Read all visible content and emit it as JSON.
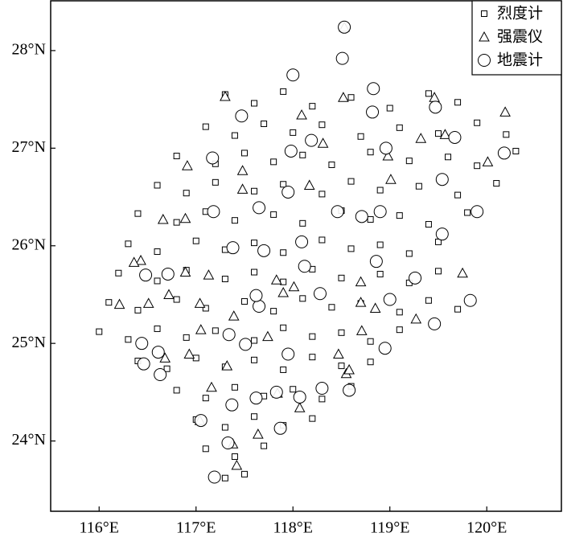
{
  "chart_data": {
    "type": "scatter",
    "xlim": [
      115.5,
      120.77
    ],
    "ylim": [
      23.28,
      28.51
    ],
    "xticks": [
      {
        "value": 116,
        "label": "116°E"
      },
      {
        "value": 117,
        "label": "117°E"
      },
      {
        "value": 118,
        "label": "118°E"
      },
      {
        "value": 119,
        "label": "119°E"
      },
      {
        "value": 120,
        "label": "120°E"
      }
    ],
    "yticks": [
      {
        "value": 24,
        "label": "24°N"
      },
      {
        "value": 25,
        "label": "25°N"
      },
      {
        "value": 26,
        "label": "26°N"
      },
      {
        "value": 27,
        "label": "27°N"
      },
      {
        "value": 28,
        "label": "28°N"
      }
    ],
    "legend": "upper right",
    "series": [
      {
        "name": "烈度计",
        "marker": "square",
        "color": "#000000",
        "x": [
          117.3,
          117.6,
          117.9,
          118.2,
          118.6,
          119.0,
          119.4,
          119.7,
          117.1,
          117.4,
          117.7,
          118.0,
          118.3,
          118.7,
          119.1,
          119.5,
          119.9,
          120.2,
          116.8,
          117.2,
          117.5,
          117.8,
          118.1,
          118.4,
          118.8,
          119.2,
          119.6,
          119.9,
          120.3,
          116.6,
          116.9,
          117.2,
          117.6,
          117.9,
          118.3,
          118.6,
          118.9,
          119.3,
          119.7,
          120.1,
          116.4,
          116.8,
          117.1,
          117.4,
          117.8,
          118.1,
          118.5,
          118.8,
          119.1,
          119.4,
          119.8,
          116.3,
          116.6,
          117.0,
          117.3,
          117.6,
          117.9,
          118.3,
          118.6,
          118.9,
          119.2,
          119.5,
          116.2,
          116.6,
          116.9,
          117.3,
          117.6,
          117.9,
          118.2,
          118.5,
          118.9,
          119.2,
          119.5,
          116.1,
          116.4,
          116.8,
          117.1,
          117.5,
          117.8,
          118.1,
          118.4,
          118.7,
          119.1,
          119.4,
          119.7,
          116.0,
          116.3,
          116.6,
          116.9,
          117.2,
          117.6,
          117.9,
          118.2,
          118.5,
          118.8,
          119.1,
          116.4,
          116.7,
          117.0,
          117.3,
          117.6,
          117.9,
          118.2,
          118.5,
          118.8,
          116.8,
          117.1,
          117.4,
          117.7,
          118.0,
          118.3,
          118.6,
          117.0,
          117.3,
          117.6,
          117.9,
          118.2,
          117.1,
          117.4,
          117.7,
          117.3,
          117.5
        ],
        "y": [
          27.55,
          27.46,
          27.58,
          27.43,
          27.52,
          27.41,
          27.56,
          27.47,
          27.22,
          27.13,
          27.25,
          27.16,
          27.24,
          27.12,
          27.21,
          27.15,
          27.26,
          27.14,
          26.92,
          26.84,
          26.95,
          26.86,
          26.93,
          26.83,
          26.96,
          26.87,
          26.91,
          26.82,
          26.97,
          26.62,
          26.54,
          26.65,
          26.56,
          26.63,
          26.53,
          26.66,
          26.57,
          26.61,
          26.52,
          26.64,
          26.33,
          26.24,
          26.35,
          26.26,
          26.32,
          26.23,
          26.36,
          26.27,
          26.31,
          26.22,
          26.34,
          26.02,
          25.94,
          26.05,
          25.96,
          26.03,
          25.93,
          26.06,
          25.97,
          26.01,
          25.92,
          26.04,
          25.72,
          25.64,
          25.75,
          25.66,
          25.73,
          25.63,
          25.76,
          25.67,
          25.71,
          25.62,
          25.74,
          25.42,
          25.34,
          25.45,
          25.36,
          25.43,
          25.33,
          25.46,
          25.37,
          25.41,
          25.32,
          25.44,
          25.35,
          25.12,
          25.04,
          25.15,
          25.06,
          25.13,
          25.03,
          25.16,
          25.07,
          25.11,
          25.02,
          25.14,
          24.82,
          24.74,
          24.85,
          24.76,
          24.83,
          24.73,
          24.86,
          24.77,
          24.81,
          24.52,
          24.44,
          24.55,
          24.46,
          24.53,
          24.43,
          24.56,
          24.22,
          24.14,
          24.25,
          24.16,
          24.23,
          23.92,
          23.84,
          23.95,
          23.62,
          23.66
        ]
      },
      {
        "name": "强震仪",
        "marker": "triangle",
        "color": "#000000",
        "x": [
          118.53,
          117.3,
          118.52,
          119.46,
          118.09,
          120.19,
          116.91,
          117.48,
          117.48,
          118.17,
          118.98,
          119.01,
          118.31,
          119.32,
          119.57,
          120.01,
          116.66,
          116.89,
          116.43,
          116.36,
          116.89,
          117.13,
          116.72,
          116.51,
          116.21,
          117.04,
          117.39,
          117.83,
          118.01,
          117.9,
          118.7,
          118.7,
          118.71,
          119.27,
          117.05,
          116.93,
          116.68,
          117.32,
          117.16,
          117.74,
          117.84,
          118.07,
          118.55,
          118.58,
          118.47,
          117.04,
          117.38,
          117.42,
          117.64,
          118.85,
          119.75
        ],
        "y": [
          28.24,
          27.53,
          27.52,
          27.52,
          27.34,
          27.37,
          26.82,
          26.77,
          26.58,
          26.62,
          26.92,
          26.68,
          27.05,
          27.1,
          27.14,
          26.86,
          26.27,
          26.28,
          25.85,
          25.83,
          25.73,
          25.7,
          25.5,
          25.41,
          25.4,
          25.41,
          25.28,
          25.65,
          25.58,
          25.52,
          25.63,
          25.42,
          25.13,
          25.25,
          25.14,
          24.89,
          24.85,
          24.77,
          24.55,
          25.07,
          24.49,
          24.34,
          24.69,
          24.73,
          24.89,
          24.21,
          23.97,
          23.75,
          24.07,
          25.36,
          25.72
        ]
      },
      {
        "name": "地震计",
        "marker": "circle",
        "color": "#000000",
        "x": [
          118.53,
          118.51,
          118.0,
          118.83,
          118.82,
          117.47,
          119.47,
          118.19,
          117.98,
          118.96,
          119.67,
          120.18,
          117.17,
          117.95,
          119.54,
          117.18,
          117.65,
          118.46,
          118.71,
          118.9,
          117.38,
          117.7,
          118.09,
          118.86,
          118.12,
          119.54,
          119.0,
          119.26,
          118.28,
          117.65,
          119.9,
          119.83,
          119.46,
          116.44,
          116.61,
          116.46,
          116.63,
          117.34,
          117.51,
          117.95,
          118.95,
          117.62,
          117.83,
          118.07,
          118.3,
          118.58,
          117.05,
          117.37,
          117.87,
          117.19,
          117.33,
          116.71,
          116.48,
          117.62
        ],
        "y": [
          28.24,
          27.92,
          27.75,
          27.61,
          27.37,
          27.33,
          27.42,
          27.08,
          26.97,
          27.0,
          27.11,
          26.95,
          26.9,
          26.55,
          26.68,
          26.35,
          26.39,
          26.35,
          26.3,
          26.35,
          25.98,
          25.95,
          26.04,
          25.84,
          25.79,
          26.12,
          25.45,
          25.67,
          25.51,
          25.38,
          26.35,
          25.44,
          25.2,
          25.0,
          24.91,
          24.79,
          24.68,
          25.09,
          24.99,
          24.89,
          24.95,
          24.44,
          24.5,
          24.45,
          24.54,
          24.52,
          24.21,
          24.37,
          24.13,
          23.63,
          23.98,
          25.71,
          25.7,
          25.49
        ]
      }
    ]
  }
}
